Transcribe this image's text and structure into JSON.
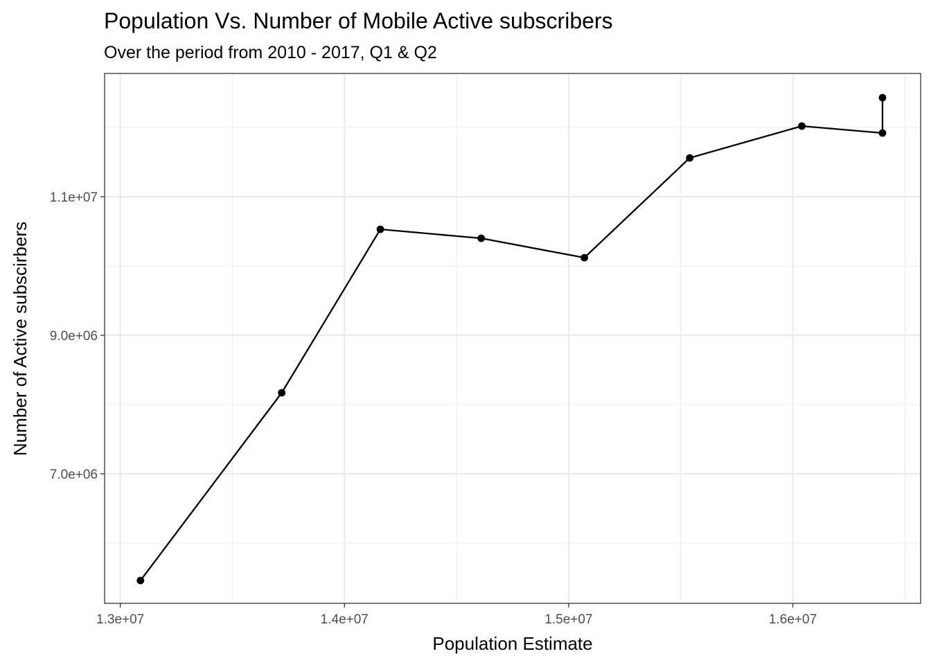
{
  "chart_data": {
    "type": "line",
    "title": "Population Vs. Number of Mobile Active subscribers",
    "subtitle": "Over the period from 2010 - 2017, Q1 & Q2",
    "xlabel": "Population Estimate",
    "ylabel": "Number of Active subscirbers",
    "xlim": [
      12930000,
      16570000
    ],
    "ylim": [
      5130000,
      12780000
    ],
    "x_ticks": [
      {
        "value": 13000000,
        "label": "1.3e+07"
      },
      {
        "value": 14000000,
        "label": "1.4e+07"
      },
      {
        "value": 15000000,
        "label": "1.5e+07"
      },
      {
        "value": 16000000,
        "label": "1.6e+07"
      }
    ],
    "y_ticks": [
      {
        "value": 7000000,
        "label": "7.0e+06"
      },
      {
        "value": 9000000,
        "label": "9.0e+06"
      },
      {
        "value": 11000000,
        "label": "1.1e+07"
      }
    ],
    "x_minor_ticks": [
      13500000,
      14500000,
      15500000,
      16500000
    ],
    "y_minor_ticks": [
      6000000,
      8000000,
      10000000,
      12000000
    ],
    "grid": true,
    "legend": "none",
    "line_color": "#000000",
    "points": [
      {
        "x": 13090000,
        "y": 5460000
      },
      {
        "x": 13720000,
        "y": 8170000
      },
      {
        "x": 14160000,
        "y": 10530000
      },
      {
        "x": 14610000,
        "y": 10400000
      },
      {
        "x": 15070000,
        "y": 10120000
      },
      {
        "x": 15540000,
        "y": 11560000
      },
      {
        "x": 16040000,
        "y": 12020000
      },
      {
        "x": 16400000,
        "y": 11920000
      },
      {
        "x": 16400000,
        "y": 12430000
      }
    ]
  }
}
